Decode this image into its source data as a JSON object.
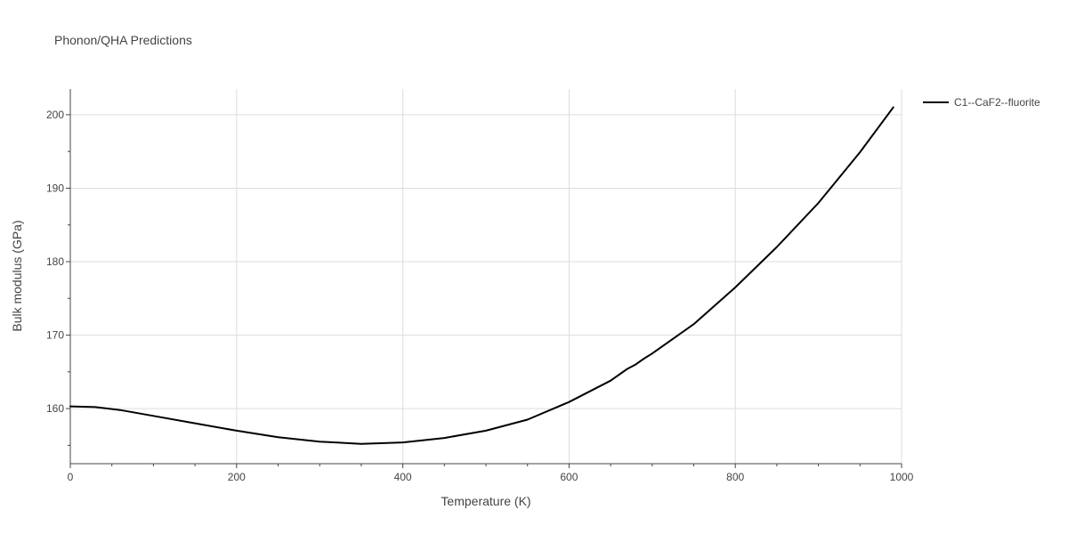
{
  "chart_data": {
    "type": "line",
    "title": "Phonon/QHA Predictions",
    "xlabel": "Temperature (K)",
    "ylabel": "Bulk modulus (GPa)",
    "xlim": [
      0,
      1000
    ],
    "ylim": [
      152.5,
      203.5
    ],
    "xticks": [
      0,
      200,
      400,
      600,
      800,
      1000
    ],
    "yticks": [
      160,
      170,
      180,
      190,
      200
    ],
    "grid": true,
    "legend_position": "top-right",
    "series": [
      {
        "name": "C1--CaF2--fluorite",
        "color": "#000000",
        "x": [
          0,
          30,
          60,
          100,
          150,
          200,
          250,
          300,
          350,
          400,
          450,
          500,
          550,
          600,
          650,
          670,
          680,
          690,
          700,
          750,
          800,
          850,
          900,
          950,
          990
        ],
        "y": [
          160.3,
          160.2,
          159.8,
          159.0,
          158.0,
          157.0,
          156.1,
          155.5,
          155.2,
          155.4,
          156.0,
          157.0,
          158.5,
          160.9,
          163.8,
          165.4,
          166.0,
          166.8,
          167.5,
          171.5,
          176.5,
          182.0,
          188.0,
          194.9,
          201.0
        ]
      }
    ]
  }
}
